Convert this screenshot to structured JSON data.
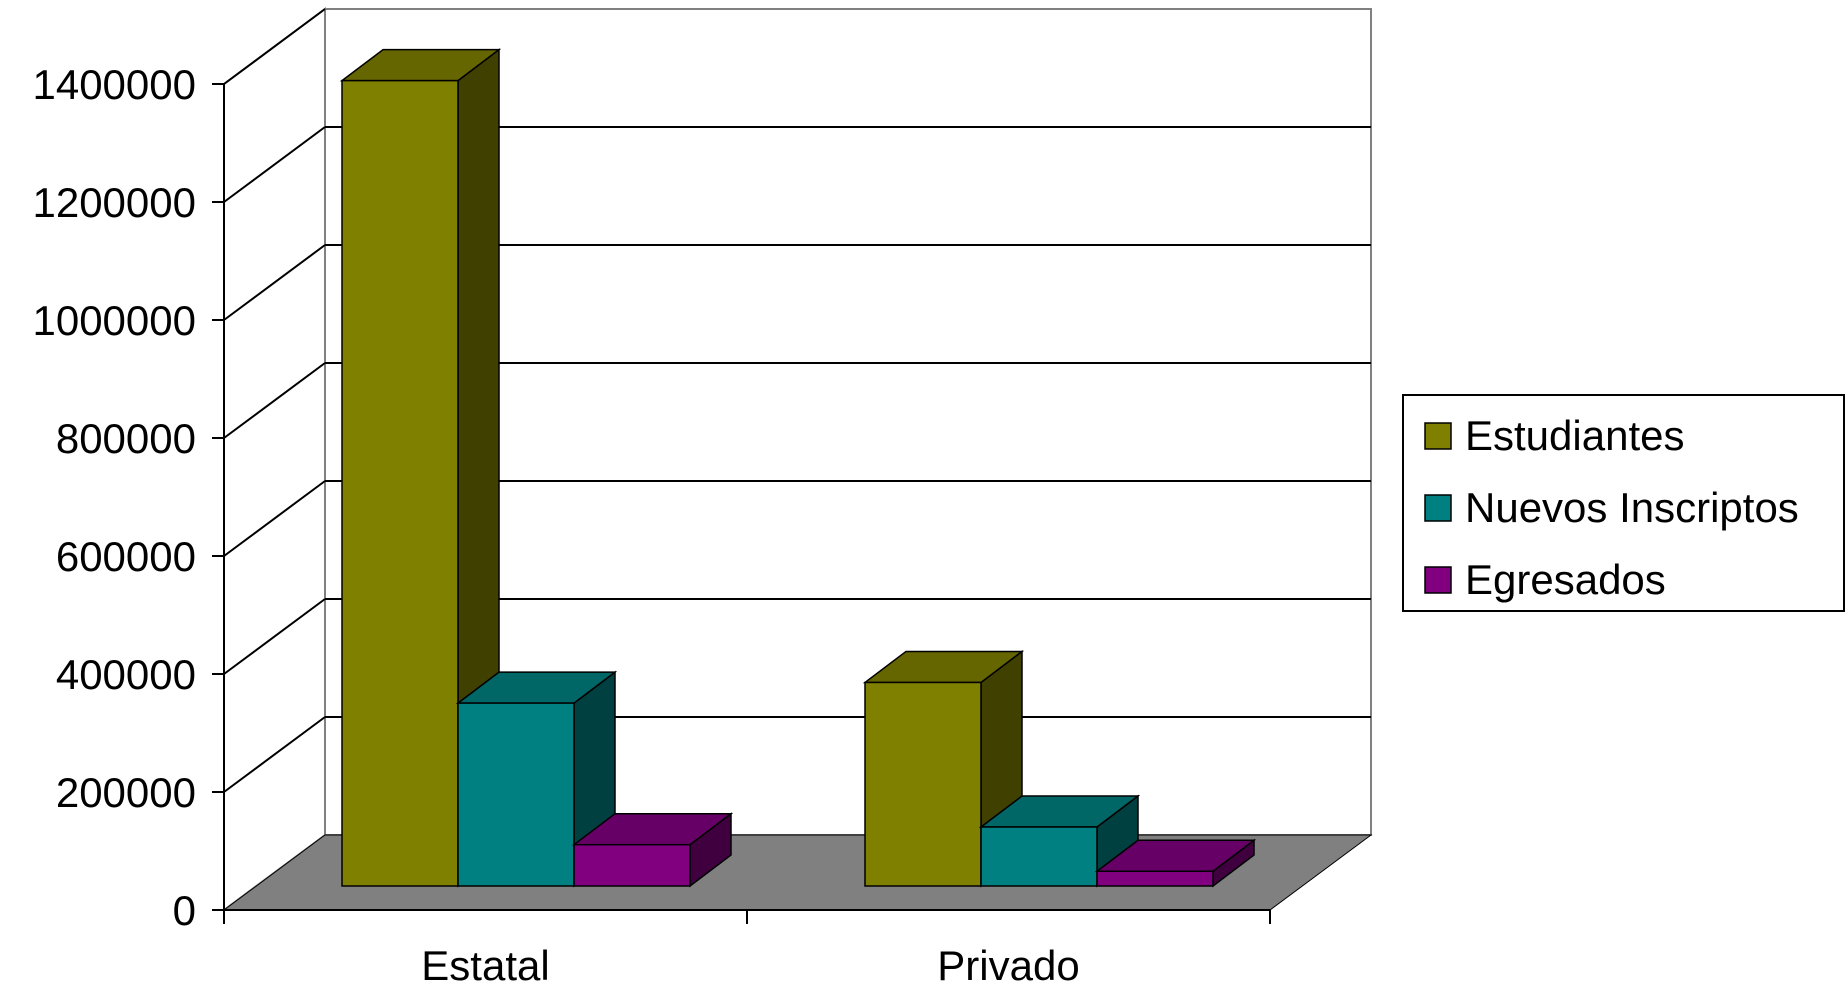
{
  "chart_data": {
    "type": "bar",
    "title": "",
    "xlabel": "",
    "ylabel": "",
    "categories": [
      "Estatal",
      "Privado"
    ],
    "series": [
      {
        "name": "Estudiantes",
        "values": [
          1365000,
          345000
        ],
        "color": "#808000"
      },
      {
        "name": "Nuevos Inscriptos",
        "values": [
          310000,
          100000
        ],
        "color": "#008080"
      },
      {
        "name": "Egresados",
        "values": [
          70000,
          25000
        ],
        "color": "#800080"
      }
    ],
    "ylim": [
      0,
      1400000
    ],
    "yticks": [
      0,
      200000,
      400000,
      600000,
      800000,
      1000000,
      1200000,
      1400000
    ],
    "ytick_labels": [
      "0",
      "200000",
      "400000",
      "600000",
      "800000",
      "1000000",
      "1200000",
      "1400000"
    ],
    "grid": true,
    "legend_position": "right",
    "style": "3d-column",
    "floor_color": "#808080"
  }
}
